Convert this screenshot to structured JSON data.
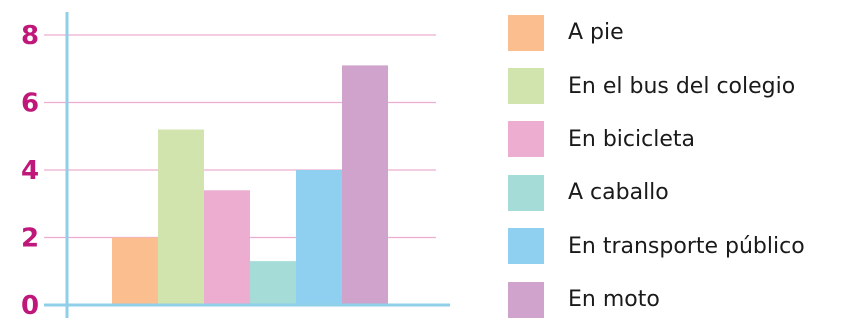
{
  "chart_data": {
    "type": "bar",
    "categories": [
      "A pie",
      "En el bus del colegio",
      "En bicicleta",
      "A caballo",
      "En transporte público",
      "En moto"
    ],
    "values": [
      2,
      5.2,
      3.4,
      1.3,
      4,
      7.1
    ],
    "colors": [
      "#fbbf8f",
      "#d1e4ad",
      "#ecadd0",
      "#a5dcd8",
      "#8fd0f1",
      "#cfa3cc"
    ],
    "yticks": [
      "0",
      "2",
      "4",
      "6",
      "8"
    ],
    "ylim": [
      0,
      8
    ],
    "grid": true,
    "legend": "right",
    "axis_color": "#8fcfe8",
    "grid_color": "#ecadd0",
    "tick_color": "#c0187a"
  }
}
